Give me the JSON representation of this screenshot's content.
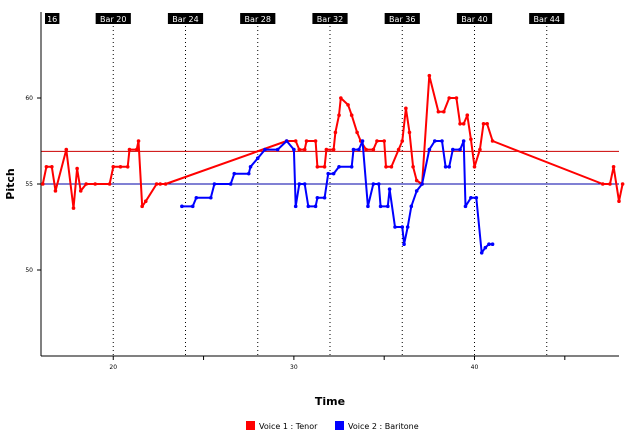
{
  "chart_data": {
    "type": "line",
    "xlabel": "Time",
    "ylabel": "Pitch",
    "xlim": [
      16,
      48
    ],
    "ylim": [
      45,
      65
    ],
    "x_ticks": [
      20,
      30,
      40
    ],
    "y_ticks": [
      50,
      55,
      60
    ],
    "x_minor_ticks": [
      25,
      35,
      45
    ],
    "bar_markers": [
      {
        "label": "16",
        "x": 16
      },
      {
        "label": "Bar 20",
        "x": 20
      },
      {
        "label": "Bar 24",
        "x": 24
      },
      {
        "label": "Bar 28",
        "x": 28
      },
      {
        "label": "Bar 32",
        "x": 32
      },
      {
        "label": "Bar 36",
        "x": 36
      },
      {
        "label": "Bar 40",
        "x": 40
      },
      {
        "label": "Bar 44",
        "x": 44
      }
    ],
    "reference_lines": [
      {
        "y": 56.9,
        "color": "#cc0000"
      },
      {
        "y": 55.0,
        "color": "#0000aa"
      }
    ],
    "series": [
      {
        "name": "Voice 1 : Tenor",
        "color": "#ff0000",
        "points": [
          [
            16.1,
            55
          ],
          [
            16.3,
            56
          ],
          [
            16.6,
            56
          ],
          [
            16.8,
            54.6
          ],
          [
            17.4,
            57
          ],
          [
            17.8,
            53.6
          ],
          [
            18.0,
            55.9
          ],
          [
            18.2,
            54.6
          ],
          [
            18.5,
            55
          ],
          [
            19.0,
            55
          ],
          [
            19.8,
            55
          ],
          [
            20.0,
            56
          ],
          [
            20.4,
            56
          ],
          [
            20.8,
            56
          ],
          [
            20.9,
            57
          ],
          [
            21.3,
            57
          ],
          [
            21.4,
            57.5
          ],
          [
            21.6,
            53.7
          ],
          [
            21.8,
            54
          ],
          [
            22.4,
            55
          ],
          [
            22.6,
            55
          ],
          [
            22.9,
            55
          ],
          [
            29.6,
            57.5
          ],
          [
            30.1,
            57.5
          ],
          [
            30.3,
            57
          ],
          [
            30.6,
            57
          ],
          [
            30.7,
            57.5
          ],
          [
            31.2,
            57.5
          ],
          [
            31.3,
            56
          ],
          [
            31.7,
            56
          ],
          [
            31.8,
            57
          ],
          [
            32.2,
            57
          ],
          [
            32.3,
            58
          ],
          [
            32.5,
            59
          ],
          [
            32.6,
            60
          ],
          [
            33.0,
            59.6
          ],
          [
            33.2,
            59
          ],
          [
            33.5,
            58
          ],
          [
            33.7,
            57.5
          ],
          [
            34.0,
            57
          ],
          [
            34.4,
            57
          ],
          [
            34.6,
            57.5
          ],
          [
            35.0,
            57.5
          ],
          [
            35.1,
            56
          ],
          [
            35.4,
            56
          ],
          [
            35.8,
            57
          ],
          [
            36.0,
            57.5
          ],
          [
            36.2,
            59.4
          ],
          [
            36.4,
            58
          ],
          [
            36.6,
            56
          ],
          [
            36.8,
            55.2
          ],
          [
            37.1,
            55
          ],
          [
            37.5,
            61.3
          ],
          [
            38.0,
            59.2
          ],
          [
            38.3,
            59.2
          ],
          [
            38.6,
            60
          ],
          [
            39.0,
            60
          ],
          [
            39.2,
            58.5
          ],
          [
            39.4,
            58.5
          ],
          [
            39.6,
            59
          ],
          [
            39.8,
            57.6
          ],
          [
            40.0,
            56
          ],
          [
            40.3,
            57
          ],
          [
            40.5,
            58.5
          ],
          [
            40.7,
            58.5
          ],
          [
            41.0,
            57.5
          ],
          [
            47.1,
            55
          ],
          [
            47.5,
            55
          ],
          [
            47.7,
            56
          ],
          [
            48.0,
            54
          ],
          [
            48.2,
            55
          ]
        ]
      },
      {
        "name": "Voice 2 : Baritone",
        "color": "#0000ff",
        "points": [
          [
            23.8,
            53.7
          ],
          [
            24.4,
            53.7
          ],
          [
            24.6,
            54.2
          ],
          [
            25.4,
            54.2
          ],
          [
            25.6,
            55
          ],
          [
            26.5,
            55
          ],
          [
            26.7,
            55.6
          ],
          [
            27.5,
            55.6
          ],
          [
            27.6,
            56
          ],
          [
            28.0,
            56.5
          ],
          [
            28.4,
            57
          ],
          [
            29.1,
            57
          ],
          [
            29.6,
            57.5
          ],
          [
            30.0,
            57
          ],
          [
            30.1,
            53.7
          ],
          [
            30.3,
            55
          ],
          [
            30.6,
            55
          ],
          [
            30.8,
            53.7
          ],
          [
            31.2,
            53.7
          ],
          [
            31.3,
            54.2
          ],
          [
            31.7,
            54.2
          ],
          [
            31.9,
            55.6
          ],
          [
            32.2,
            55.6
          ],
          [
            32.5,
            56
          ],
          [
            33.2,
            56
          ],
          [
            33.3,
            57
          ],
          [
            33.6,
            57
          ],
          [
            33.8,
            57.5
          ],
          [
            34.1,
            53.7
          ],
          [
            34.4,
            55
          ],
          [
            34.7,
            55
          ],
          [
            34.8,
            53.7
          ],
          [
            35.2,
            53.7
          ],
          [
            35.3,
            54.7
          ],
          [
            35.6,
            52.5
          ],
          [
            36.0,
            52.5
          ],
          [
            36.1,
            51.5
          ],
          [
            36.3,
            52.5
          ],
          [
            36.5,
            53.7
          ],
          [
            36.8,
            54.6
          ],
          [
            37.1,
            55
          ],
          [
            37.5,
            57
          ],
          [
            37.8,
            57.5
          ],
          [
            38.2,
            57.5
          ],
          [
            38.4,
            56
          ],
          [
            38.6,
            56
          ],
          [
            38.8,
            57
          ],
          [
            39.2,
            57
          ],
          [
            39.4,
            57.5
          ],
          [
            39.5,
            53.7
          ],
          [
            39.8,
            54.2
          ],
          [
            40.1,
            54.2
          ],
          [
            40.4,
            51
          ],
          [
            40.6,
            51.3
          ],
          [
            40.8,
            51.5
          ],
          [
            41.0,
            51.5
          ]
        ]
      }
    ],
    "legend": {
      "placement": "bottom",
      "entries": [
        "Voice 1 : Tenor",
        "Voice 2 : Baritone"
      ],
      "colors": [
        "#ff0000",
        "#0000ff"
      ]
    },
    "grid": false
  }
}
